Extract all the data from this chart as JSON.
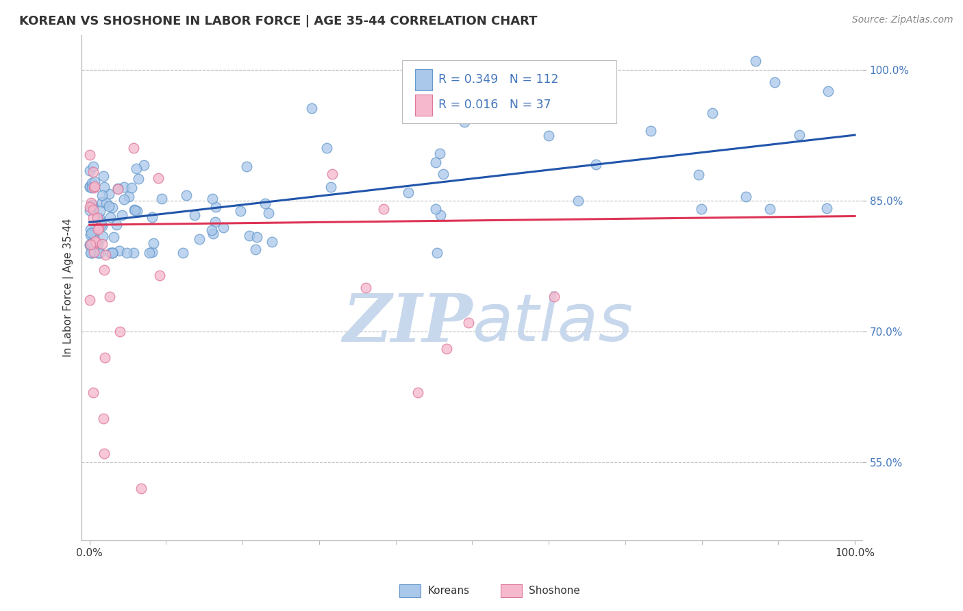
{
  "title": "KOREAN VS SHOSHONE IN LABOR FORCE | AGE 35-44 CORRELATION CHART",
  "source": "Source: ZipAtlas.com",
  "ylabel": "In Labor Force | Age 35-44",
  "xlim": [
    -0.01,
    1.01
  ],
  "ylim": [
    0.46,
    1.04
  ],
  "yticks": [
    0.55,
    0.7,
    0.85,
    1.0
  ],
  "ytick_labels": [
    "55.0%",
    "70.0%",
    "85.0%",
    "100.0%"
  ],
  "xticks": [
    0.0,
    1.0
  ],
  "xtick_labels": [
    "0.0%",
    "100.0%"
  ],
  "korean_R": 0.349,
  "korean_N": 112,
  "shoshone_R": 0.016,
  "shoshone_N": 37,
  "korean_color": "#aac8ea",
  "korean_edge": "#6699cc",
  "shoshone_color": "#f5b8cc",
  "shoshone_edge": "#dd7799",
  "trend_korean_color": "#2255aa",
  "trend_shoshone_color": "#dd3355",
  "watermark_color": "#c8d8e8",
  "background_color": "#ffffff",
  "grid_color": "#bbbbbb",
  "legend_box_color_korean": "#aac8ea",
  "legend_box_color_shoshone": "#f5b8cc",
  "korean_trend_x0": 0.0,
  "korean_trend_y0": 0.825,
  "korean_trend_x1": 1.0,
  "korean_trend_y1": 0.925,
  "shoshone_trend_x0": 0.0,
  "shoshone_trend_y0": 0.822,
  "shoshone_trend_x1": 1.0,
  "shoshone_trend_y1": 0.832
}
